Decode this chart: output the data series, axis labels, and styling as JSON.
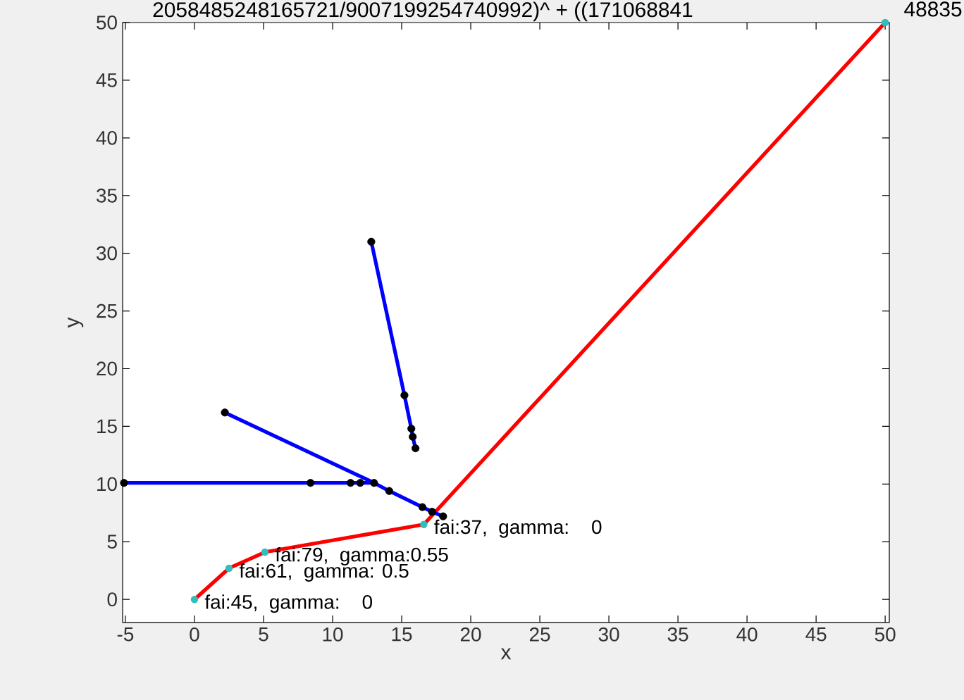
{
  "chart_data": {
    "type": "line",
    "title": "2058485248165721/9007199254740992)^ + ((171068841",
    "xlabel": "x",
    "ylabel": "y",
    "xlim": [
      -5.2,
      50.3
    ],
    "ylim": [
      -2,
      50
    ],
    "xticks": [
      -5,
      0,
      5,
      10,
      15,
      20,
      25,
      30,
      35,
      40,
      45,
      50
    ],
    "yticks": [
      0,
      5,
      10,
      15,
      20,
      25,
      30,
      35,
      40,
      45,
      50
    ],
    "grid": false,
    "series": [
      {
        "color": "#ff0000",
        "x": [
          0,
          2.5,
          5.1,
          16.6,
          50
        ],
        "values": [
          0,
          2.7,
          4.1,
          6.5,
          50
        ]
      },
      {
        "type": "scatter",
        "marker": "circle",
        "color": "#2fbfbf",
        "x": [
          0,
          2.5,
          5.1,
          16.6,
          50
        ],
        "values": [
          0,
          2.7,
          4.1,
          6.5,
          50
        ]
      },
      {
        "color": "#0000ff",
        "x": [
          -5.1,
          8.4,
          11.3,
          12.0,
          13.0
        ],
        "values": [
          10.1,
          10.1,
          10.1,
          10.1,
          10.1
        ]
      },
      {
        "color": "#0000ff",
        "x": [
          2.2,
          13.0,
          14.1,
          16.5,
          17.2,
          18.0
        ],
        "values": [
          16.2,
          10.1,
          9.4,
          8.0,
          7.6,
          7.2
        ]
      },
      {
        "color": "#0000ff",
        "x": [
          12.8,
          15.2,
          15.7,
          15.8,
          16.0
        ],
        "values": [
          31.0,
          17.7,
          14.8,
          14.1,
          13.1
        ]
      },
      {
        "type": "scatter",
        "marker": "circle",
        "color": "#000000",
        "x": [
          -5.1,
          8.4,
          11.3,
          12.0,
          13.0,
          14.1,
          16.5,
          17.2,
          18.0,
          2.2,
          12.8,
          15.2,
          15.7,
          15.8,
          16.0
        ],
        "values": [
          10.1,
          10.1,
          10.1,
          10.1,
          10.1,
          9.4,
          8.0,
          7.6,
          7.2,
          16.2,
          31.0,
          17.7,
          14.8,
          14.1,
          13.1
        ]
      }
    ],
    "annotations": [
      {
        "text": "fai:45,  gamma:   0",
        "x": 0,
        "y": 0
      },
      {
        "text": "fai:61,  gamma: 0.5",
        "x": 2.5,
        "y": 2.7
      },
      {
        "text": "fai:79,  gamma:0.55",
        "x": 5.1,
        "y": 4.1
      },
      {
        "text": "fai:37,  gamma:   0",
        "x": 16.6,
        "y": 6.5
      },
      "48835"
    ]
  }
}
